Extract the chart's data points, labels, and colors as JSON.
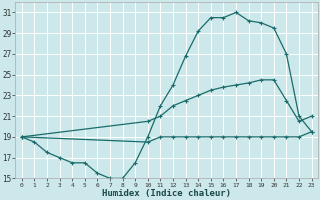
{
  "xlabel": "Humidex (Indice chaleur)",
  "background_color": "#cce8ea",
  "grid_color": "#ffffff",
  "line_color": "#1a6b6b",
  "ylim": [
    15,
    32
  ],
  "xlim": [
    -0.5,
    23.5
  ],
  "yticks": [
    15,
    17,
    19,
    21,
    23,
    25,
    27,
    29,
    31
  ],
  "xticks": [
    0,
    1,
    2,
    3,
    4,
    5,
    6,
    7,
    8,
    9,
    10,
    11,
    12,
    13,
    14,
    15,
    16,
    17,
    18,
    19,
    20,
    21,
    22,
    23
  ],
  "series1": [
    [
      0,
      19
    ],
    [
      1,
      18.5
    ],
    [
      2,
      17.5
    ],
    [
      3,
      17
    ],
    [
      4,
      16.5
    ],
    [
      5,
      16.5
    ],
    [
      6,
      15.5
    ],
    [
      7,
      15
    ],
    [
      8,
      15
    ],
    [
      9,
      16.5
    ],
    [
      10,
      19
    ],
    [
      11,
      22
    ],
    [
      12,
      24
    ],
    [
      13,
      26.8
    ],
    [
      14,
      29.2
    ],
    [
      15,
      30.5
    ],
    [
      16,
      30.5
    ],
    [
      17,
      31
    ],
    [
      18,
      30.2
    ],
    [
      19,
      30
    ],
    [
      20,
      29.5
    ],
    [
      21,
      27
    ],
    [
      22,
      21
    ],
    [
      23,
      19.5
    ]
  ],
  "series2": [
    [
      0,
      19
    ],
    [
      10,
      20.5
    ],
    [
      11,
      21.0
    ],
    [
      12,
      22.0
    ],
    [
      13,
      22.5
    ],
    [
      14,
      23.0
    ],
    [
      15,
      23.5
    ],
    [
      16,
      23.8
    ],
    [
      17,
      24.0
    ],
    [
      18,
      24.2
    ],
    [
      19,
      24.5
    ],
    [
      20,
      24.5
    ],
    [
      21,
      22.5
    ],
    [
      22,
      20.5
    ],
    [
      23,
      21
    ]
  ],
  "series3": [
    [
      0,
      19
    ],
    [
      10,
      18.5
    ],
    [
      11,
      19.0
    ],
    [
      12,
      19.0
    ],
    [
      13,
      19.0
    ],
    [
      14,
      19.0
    ],
    [
      15,
      19.0
    ],
    [
      16,
      19.0
    ],
    [
      17,
      19.0
    ],
    [
      18,
      19.0
    ],
    [
      19,
      19.0
    ],
    [
      20,
      19.0
    ],
    [
      21,
      19.0
    ],
    [
      22,
      19.0
    ],
    [
      23,
      19.5
    ]
  ]
}
